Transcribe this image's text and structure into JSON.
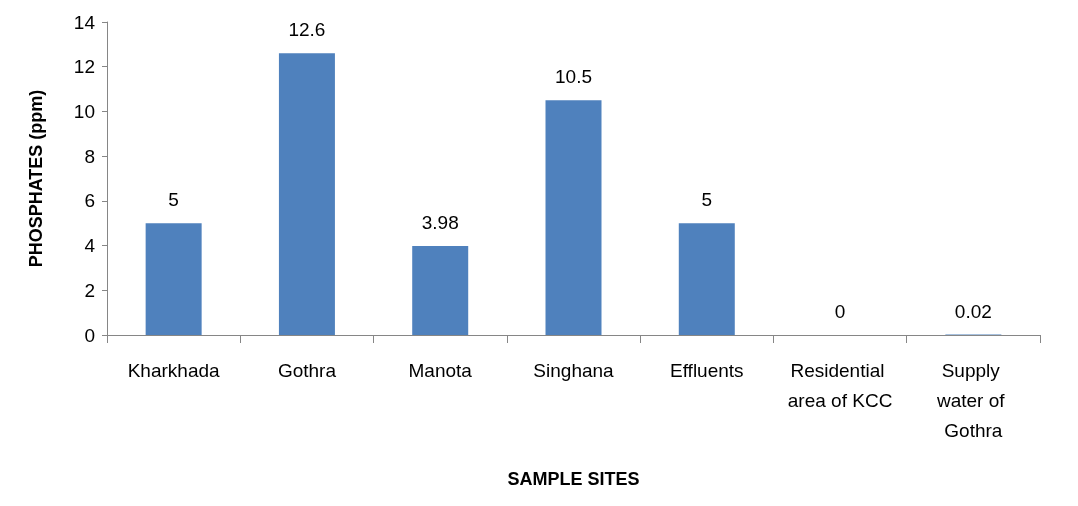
{
  "chart_data": {
    "type": "bar",
    "xlabel": "SAMPLE SITES",
    "ylabel": "PHOSPHATES (ppm)",
    "categories": [
      "Kharkhada",
      "Gothra",
      "Manota",
      "Singhana",
      "Effluents",
      "Residential area of KCC",
      "Supply water of Gothra"
    ],
    "values": [
      5,
      12.6,
      3.98,
      10.5,
      5,
      0,
      0.02
    ],
    "color": "#4f81bd",
    "ylim": [
      0,
      14
    ],
    "yticks": [
      0,
      2,
      4,
      6,
      8,
      10,
      12,
      14
    ],
    "data_labels": true
  }
}
